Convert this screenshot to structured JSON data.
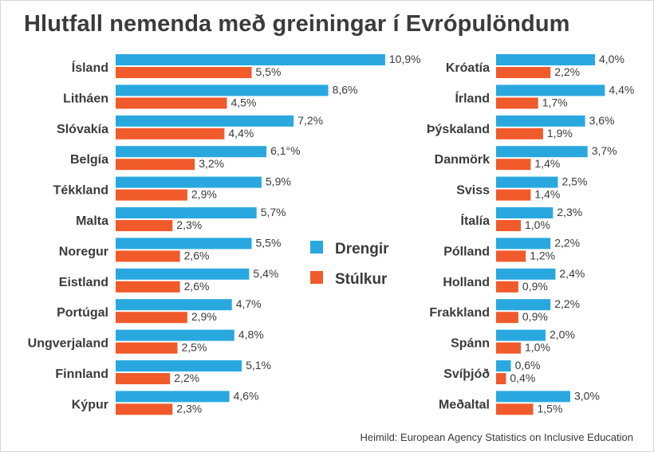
{
  "title": "Hlutfall nemenda með greiningar í Evrópulöndum",
  "source": "Heimild: European Agency Statistics on Inclusive Education",
  "colors": {
    "drengir": "#29a8e0",
    "stulkur": "#f15a2b"
  },
  "chart_data": {
    "type": "bar",
    "orientation": "horizontal",
    "legend": {
      "position": "center",
      "entries": [
        "Drengir",
        "Stúlkur"
      ]
    },
    "panels": [
      {
        "categories": [
          "Ísland",
          "Litháen",
          "Slóvakía",
          "Belgía",
          "Tékkland",
          "Malta",
          "Noregur",
          "Eistland",
          "Portúgal",
          "Ungverjaland",
          "Finnland",
          "Kýpur"
        ],
        "series": [
          {
            "name": "Drengir",
            "values": [
              10.9,
              8.6,
              7.2,
              6.1,
              5.9,
              5.7,
              5.5,
              5.4,
              4.7,
              4.8,
              5.1,
              4.6
            ],
            "labels": [
              "10,9%",
              "8,6%",
              "7,2%",
              "6,1°%",
              "5,9%",
              "5,7%",
              "5,5%",
              "5,4%",
              "4,7%",
              "4,8%",
              "5,1%",
              "4,6%"
            ]
          },
          {
            "name": "Stúlkur",
            "values": [
              5.5,
              4.5,
              4.4,
              3.2,
              2.9,
              2.3,
              2.6,
              2.6,
              2.9,
              2.5,
              2.2,
              2.3
            ],
            "labels": [
              "5,5%",
              "4,5%",
              "4,4%",
              "3,2%",
              "2,9%",
              "2,3%",
              "2,6%",
              "2,6%",
              "2,9%",
              "2,5%",
              "2,2%",
              "2,3%"
            ]
          }
        ]
      },
      {
        "categories": [
          "Króatía",
          "Írland",
          "Þýskaland",
          "Danmörk",
          "Sviss",
          "Ítalía",
          "Pólland",
          "Holland",
          "Frakkland",
          "Spánn",
          "Svíþjóð",
          "Meðaltal"
        ],
        "series": [
          {
            "name": "Drengir",
            "values": [
              4.0,
              4.4,
              3.6,
              3.7,
              2.5,
              2.3,
              2.2,
              2.4,
              2.2,
              2.0,
              0.6,
              3.0
            ],
            "labels": [
              "4,0%",
              "4,4%",
              "3,6%",
              "3,7%",
              "2,5%",
              "2,3%",
              "2,2%",
              "2,4%",
              "2,2%",
              "2,0%",
              "0,6%",
              "3,0%"
            ]
          },
          {
            "name": "Stúlkur",
            "values": [
              2.2,
              1.7,
              1.9,
              1.4,
              1.4,
              1.0,
              1.2,
              0.9,
              0.9,
              1.0,
              0.4,
              1.5
            ],
            "labels": [
              "2,2%",
              "1,7%",
              "1,9%",
              "1,4%",
              "1,4%",
              "1,0%",
              "1,2%",
              "0,9%",
              "0,9%",
              "1,0%",
              "0,4%",
              "1,5%"
            ]
          }
        ]
      }
    ]
  }
}
